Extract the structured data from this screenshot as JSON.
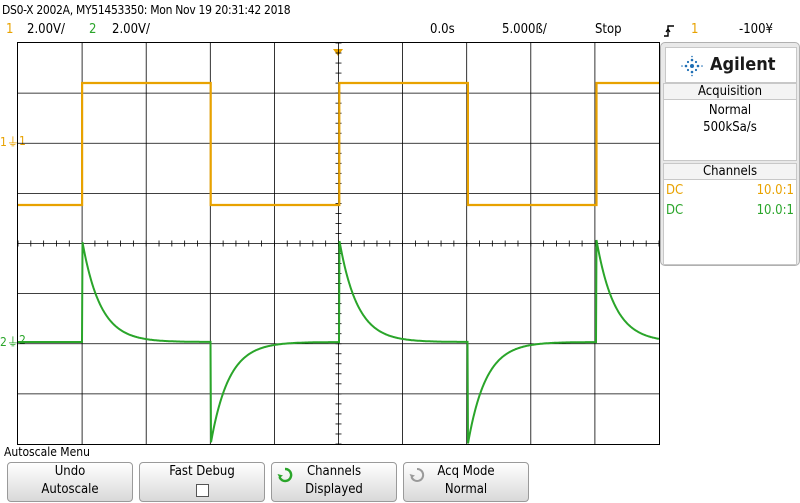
{
  "ident": "DS0-X 2002A, MY51453350: Mon Nov 19 20:31:42 2018",
  "status": {
    "ch1_num": "1",
    "ch1_scale": "2.00V/",
    "ch2_num": "2",
    "ch2_scale": "2.00V/",
    "delay": "0.0s",
    "timebase": "5.000ß/",
    "run_state": "Stop",
    "trigger_icon": "rising-edge-icon",
    "trigger_source": "1",
    "trigger_level": "-100¥"
  },
  "markers": {
    "ch1_ground": "1",
    "ch1_label": "1",
    "ch2_ground": "2",
    "ch2_label": "2"
  },
  "sidebar": {
    "brand": "Agilent",
    "acquisition_title": "Acquisition",
    "acquisition_mode": "Normal",
    "sample_rate": "500kSa/s",
    "channels_title": "Channels",
    "ch1_coupling": "DC",
    "ch1_probe": "10.0:1",
    "ch2_coupling": "DC",
    "ch2_probe": "10.0:1"
  },
  "softkeys": {
    "menu_title": "Autoscale Menu",
    "undo_line1": "Undo",
    "undo_line2": "Autoscale",
    "fastdebug_line1": "Fast Debug",
    "channels_line1": "Channels",
    "channels_line2": "Displayed",
    "acqmode_line1": "Acq Mode",
    "acqmode_line2": "Normal"
  },
  "colors": {
    "ch1": "#e8a200",
    "ch2": "#2aa52a",
    "brand_blue": "#1f6fb5"
  }
}
